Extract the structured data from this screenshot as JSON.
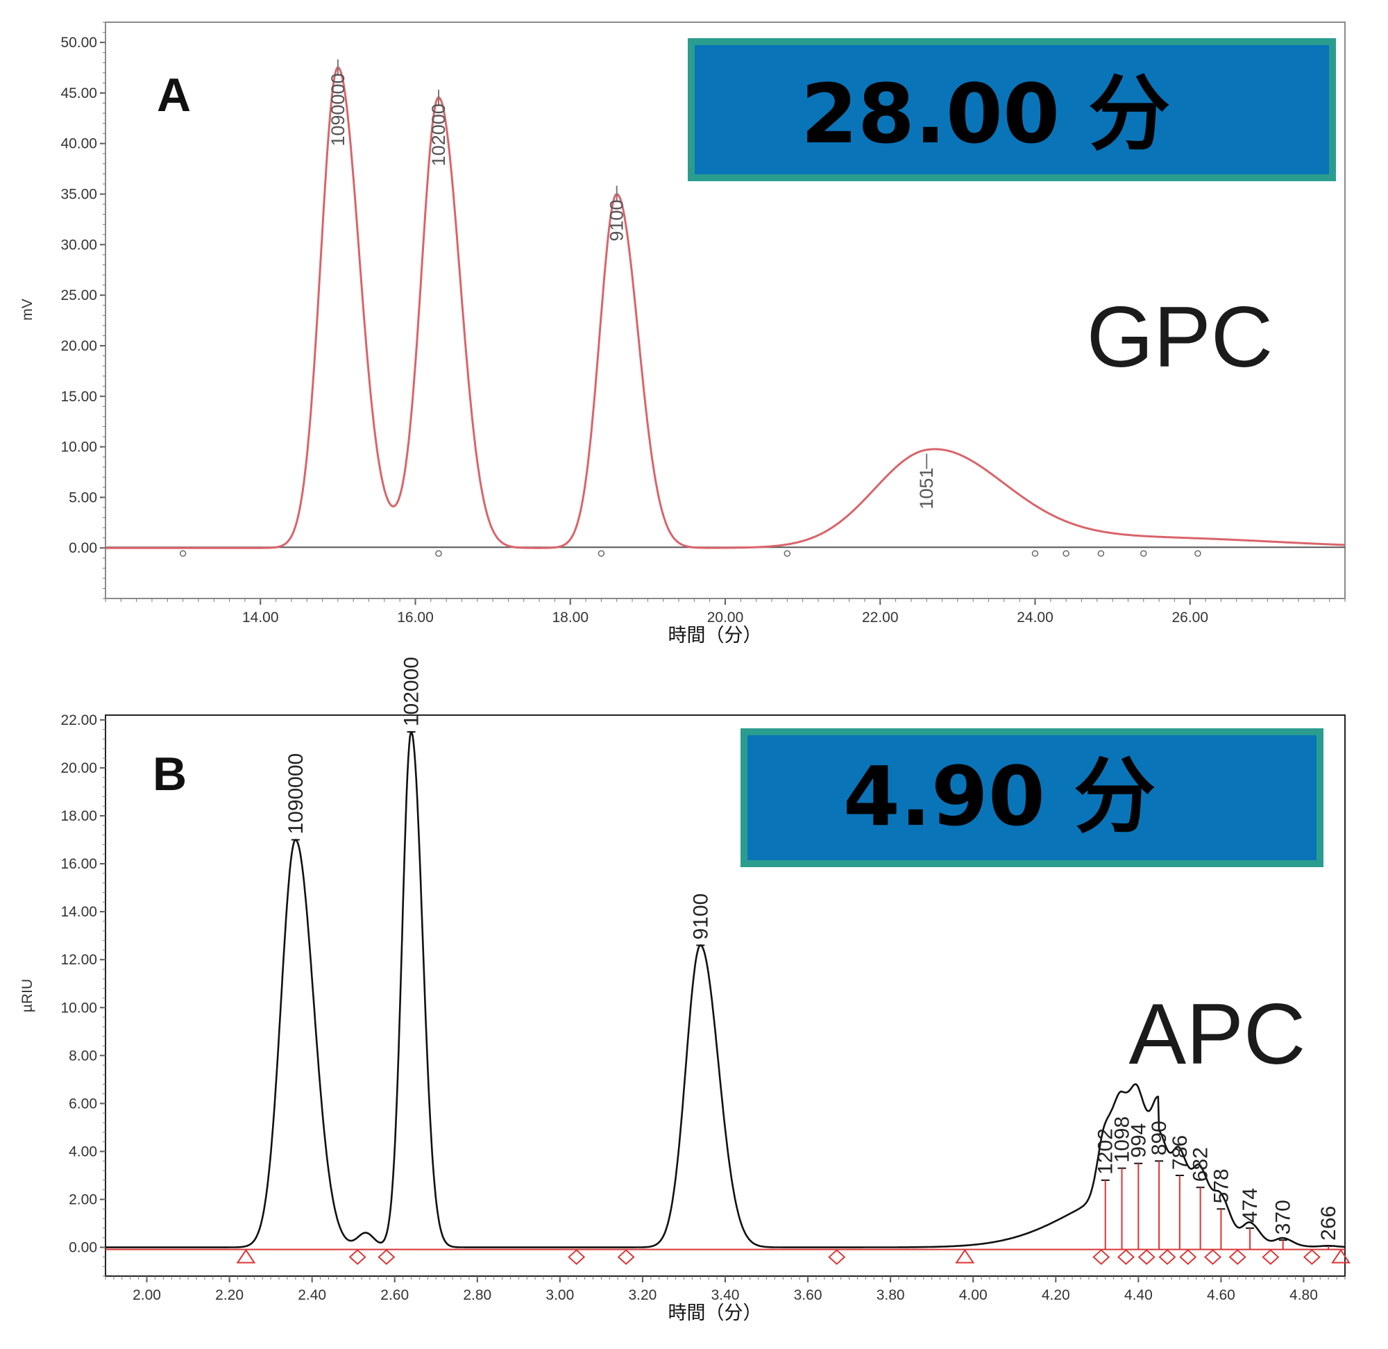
{
  "chart_data": [
    {
      "type": "line",
      "panel_label": "A",
      "method_label": "GPC",
      "time_badge": "28.00 分",
      "xlabel": "時間（分）",
      "ylabel": "mV",
      "xlim": [
        12.0,
        28.0
      ],
      "ylim": [
        -5.0,
        52.0
      ],
      "x_ticks": [
        "14.00",
        "16.00",
        "18.00",
        "20.00",
        "22.00",
        "24.00",
        "26.00"
      ],
      "y_ticks": [
        "0.00",
        "5.00",
        "10.00",
        "15.00",
        "20.00",
        "25.00",
        "30.00",
        "35.00",
        "40.00",
        "45.00",
        "50.00"
      ],
      "x_tick_values": [
        14,
        16,
        18,
        20,
        22,
        24,
        26
      ],
      "y_tick_values": [
        0,
        5,
        10,
        15,
        20,
        25,
        30,
        35,
        40,
        45,
        50
      ],
      "line_color": "#d9646a",
      "peaks": [
        {
          "label": "1090000",
          "time": 15.0,
          "height": 47.5
        },
        {
          "label": "102000",
          "time": 16.3,
          "height": 44.5
        },
        {
          "label": "9100",
          "time": 18.6,
          "height": 35.0
        },
        {
          "label": "1051",
          "time": 22.6,
          "height": 8.5
        }
      ],
      "baseline_markers": [
        13.0,
        16.3,
        18.4,
        20.8,
        24.0,
        24.4,
        24.85,
        25.4,
        26.1
      ]
    },
    {
      "type": "line",
      "panel_label": "B",
      "method_label": "APC",
      "time_badge": "4.90 分",
      "xlabel": "時間（分）",
      "ylabel": "µRIU",
      "xlim": [
        1.9,
        4.9
      ],
      "ylim": [
        -1.2,
        22.2
      ],
      "x_ticks": [
        "2.00",
        "2.20",
        "2.40",
        "2.60",
        "2.80",
        "3.00",
        "3.20",
        "3.40",
        "3.60",
        "3.80",
        "4.00",
        "4.20",
        "4.40",
        "4.60",
        "4.80"
      ],
      "y_ticks": [
        "0.00",
        "2.00",
        "4.00",
        "6.00",
        "8.00",
        "10.00",
        "12.00",
        "14.00",
        "16.00",
        "18.00",
        "20.00",
        "22.00"
      ],
      "x_tick_values": [
        2.0,
        2.2,
        2.4,
        2.6,
        2.8,
        3.0,
        3.2,
        3.4,
        3.6,
        3.8,
        4.0,
        4.2,
        4.4,
        4.6,
        4.8
      ],
      "y_tick_values": [
        0,
        2,
        4,
        6,
        8,
        10,
        12,
        14,
        16,
        18,
        20,
        22
      ],
      "line_color": "#111111",
      "peaks": [
        {
          "label": "1090000",
          "time": 2.36,
          "height": 17.0
        },
        {
          "label": "102000",
          "time": 2.64,
          "height": 21.5
        },
        {
          "label": "9100",
          "time": 3.34,
          "height": 12.6
        },
        {
          "label": "1202",
          "time": 4.32,
          "height": 2.8
        },
        {
          "label": "1098",
          "time": 4.36,
          "height": 3.3
        },
        {
          "label": "994",
          "time": 4.4,
          "height": 3.5
        },
        {
          "label": "890",
          "time": 4.45,
          "height": 3.6
        },
        {
          "label": "786",
          "time": 4.5,
          "height": 3.0
        },
        {
          "label": "682",
          "time": 4.55,
          "height": 2.5
        },
        {
          "label": "578",
          "time": 4.6,
          "height": 1.6
        },
        {
          "label": "474",
          "time": 4.67,
          "height": 0.8
        },
        {
          "label": "370",
          "time": 4.75,
          "height": 0.3
        },
        {
          "label": "266",
          "time": 4.86,
          "height": 0.05
        }
      ],
      "triangle_markers": [
        2.24,
        3.98,
        4.89
      ],
      "diamond_markers": [
        2.51,
        2.58,
        3.04,
        3.16,
        3.67,
        4.31,
        4.37,
        4.42,
        4.47,
        4.52,
        4.58,
        4.64,
        4.72,
        4.82
      ]
    }
  ]
}
